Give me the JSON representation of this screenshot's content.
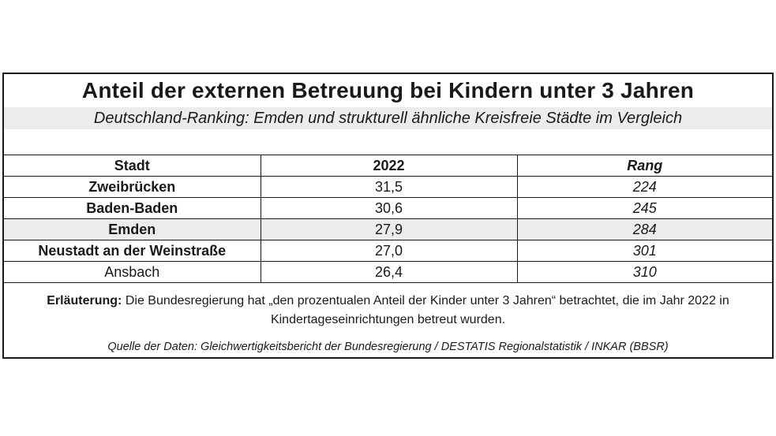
{
  "title": "Anteil der externen Betreuung bei Kindern unter 3 Jahren",
  "subtitle": "Deutschland-Ranking: Emden und strukturell ähnliche Kreisfreie Städte im Vergleich",
  "table": {
    "headers": [
      "Stadt",
      "2022",
      "Rang"
    ],
    "rows": [
      {
        "city": "Zweibrücken",
        "value": "31,5",
        "rank": "224"
      },
      {
        "city": "Baden-Baden",
        "value": "30,6",
        "rank": "245"
      },
      {
        "city": "Emden",
        "value": "27,9",
        "rank": "284"
      },
      {
        "city": "Neustadt an der Weinstraße",
        "value": "27,0",
        "rank": "301"
      },
      {
        "city": "Ansbach",
        "value": "26,4",
        "rank": "310"
      }
    ]
  },
  "note": {
    "label": "Erläuterung:",
    "text": "Die Bundesregierung hat „den prozentualen Anteil der Kinder unter 3 Jahren“ betrachtet, die im Jahr 2022 in Kindertageseinrichtungen betreut wurden."
  },
  "source": "Quelle der Daten: Gleichwertigkeitsbericht der Bundesregierung / DESTATIS Regionalstatistik / INKAR (BBSR)",
  "colors": {
    "highlight_row": "#ececec",
    "border": "#1a1a1a"
  }
}
